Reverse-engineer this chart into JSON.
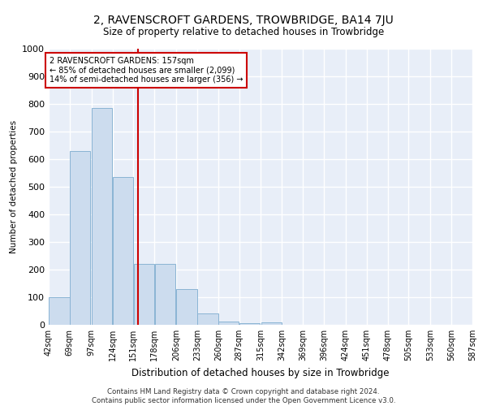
{
  "title": "2, RAVENSCROFT GARDENS, TROWBRIDGE, BA14 7JU",
  "subtitle": "Size of property relative to detached houses in Trowbridge",
  "xlabel": "Distribution of detached houses by size in Trowbridge",
  "ylabel": "Number of detached properties",
  "bar_color": "#ccdcee",
  "bar_edge_color": "#8ab4d4",
  "background_color": "#e8eef8",
  "grid_color": "#ffffff",
  "property_line_x": 157,
  "property_line_color": "#cc0000",
  "annotation_text": "2 RAVENSCROFT GARDENS: 157sqm\n← 85% of detached houses are smaller (2,099)\n14% of semi-detached houses are larger (356) →",
  "annotation_box_color": "#cc0000",
  "bins": [
    42,
    69,
    97,
    124,
    151,
    178,
    206,
    233,
    260,
    287,
    315,
    342,
    369,
    396,
    424,
    451,
    478,
    505,
    533,
    560,
    587
  ],
  "values": [
    100,
    630,
    785,
    535,
    220,
    220,
    130,
    40,
    12,
    5,
    10,
    0,
    0,
    0,
    0,
    0,
    0,
    0,
    0,
    0
  ],
  "ylim": [
    0,
    1000
  ],
  "yticks": [
    0,
    100,
    200,
    300,
    400,
    500,
    600,
    700,
    800,
    900,
    1000
  ],
  "footnote": "Contains HM Land Registry data © Crown copyright and database right 2024.\nContains public sector information licensed under the Open Government Licence v3.0."
}
